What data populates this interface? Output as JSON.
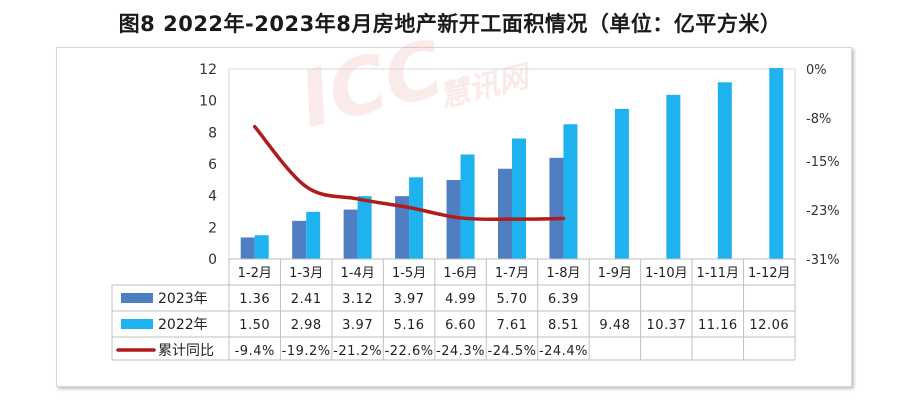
{
  "title": "图8 2022年-2023年8月房地产新开工面积情况（单位：亿平方米）",
  "watermark": {
    "main": "ICC",
    "sub": "慧讯网"
  },
  "chart_data": {
    "type": "bar",
    "categories": [
      "1-2月",
      "1-3月",
      "1-4月",
      "1-5月",
      "1-6月",
      "1-7月",
      "1-8月",
      "1-9月",
      "1-10月",
      "1-11月",
      "1-12月"
    ],
    "series": [
      {
        "name": "2023年",
        "type": "bar",
        "axis": "left",
        "color": "#4f7ec2",
        "values": [
          1.36,
          2.41,
          3.12,
          3.97,
          4.99,
          5.7,
          6.39,
          null,
          null,
          null,
          null
        ],
        "labels": [
          "1.36",
          "2.41",
          "3.12",
          "3.97",
          "4.99",
          "5.70",
          "6.39",
          "",
          "",
          "",
          ""
        ]
      },
      {
        "name": "2022年",
        "type": "bar",
        "axis": "left",
        "color": "#1eb3ee",
        "values": [
          1.5,
          2.98,
          3.97,
          5.16,
          6.6,
          7.61,
          8.51,
          9.48,
          10.37,
          11.16,
          12.06
        ],
        "labels": [
          "1.50",
          "2.98",
          "3.97",
          "5.16",
          "6.60",
          "7.61",
          "8.51",
          "9.48",
          "10.37",
          "11.16",
          "12.06"
        ]
      },
      {
        "name": "累计同比",
        "type": "line",
        "axis": "right",
        "color": "#b01c1c",
        "values": [
          -9.4,
          -19.2,
          -21.2,
          -22.6,
          -24.3,
          -24.5,
          -24.4,
          null,
          null,
          null,
          null
        ],
        "labels": [
          "-9.4%",
          "-19.2%",
          "-21.2%",
          "-22.6%",
          "-24.3%",
          "-24.5%",
          "-24.4%",
          "",
          "",
          "",
          ""
        ]
      }
    ],
    "y_left": {
      "min": 0,
      "max": 12,
      "ticks": [
        0,
        2,
        4,
        6,
        8,
        10,
        12
      ],
      "tick_labels": [
        "0",
        "2",
        "4",
        "6",
        "8",
        "10",
        "12"
      ]
    },
    "y_right": {
      "min": -31,
      "max": 0,
      "ticks": [
        0,
        -8,
        -15,
        -23,
        -31
      ],
      "tick_labels": [
        "0%",
        "-8%",
        "-15%",
        "-23%",
        "-31%"
      ]
    },
    "legend": "data-table",
    "grid": false
  }
}
